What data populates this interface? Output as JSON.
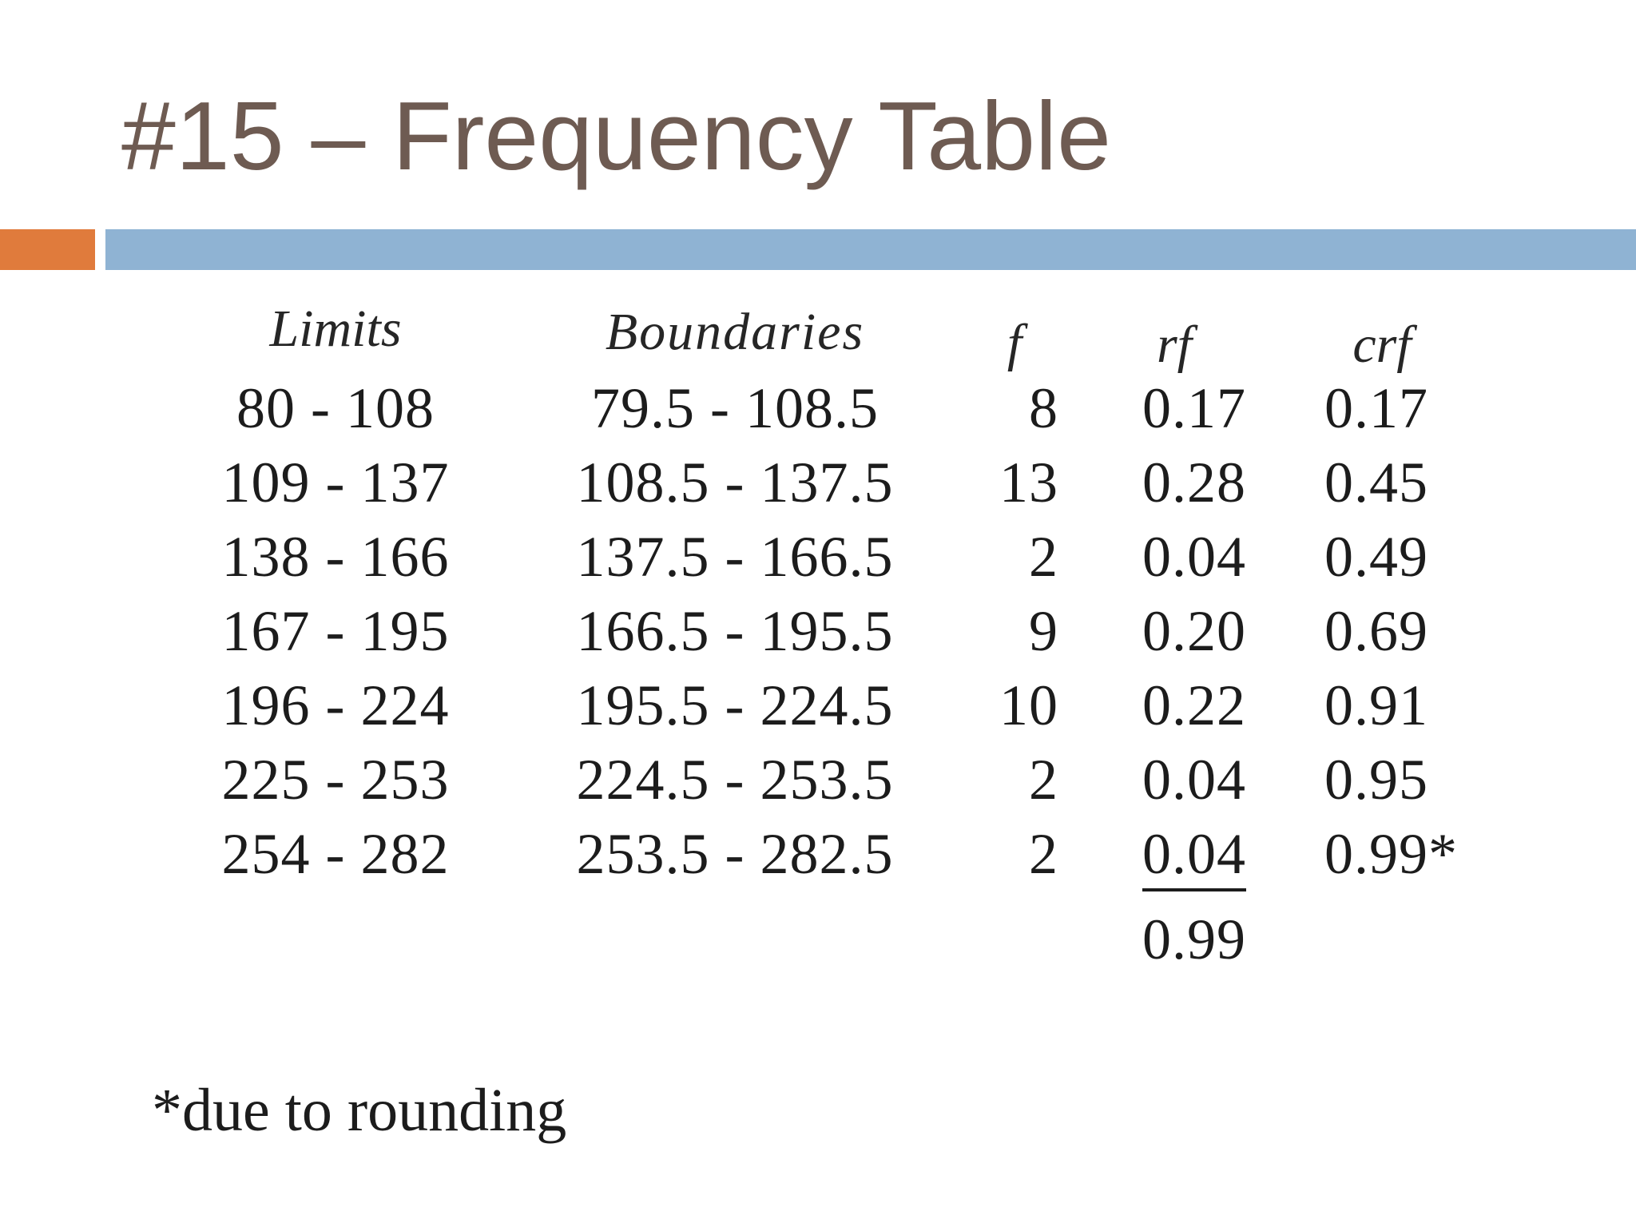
{
  "slide": {
    "title": "#15 – Frequency Table",
    "footnote": "*due to rounding",
    "colors": {
      "title": "#6e5b52",
      "accent_orange": "#e07b3c",
      "accent_blue": "#8fb3d3"
    }
  },
  "table": {
    "headers": {
      "limits": "Limits",
      "boundaries": "Boundaries",
      "f": "f",
      "rf": "rf",
      "crf": "crf"
    },
    "rows": [
      {
        "limits": "80 - 108",
        "boundaries": "79.5 - 108.5",
        "f": "8",
        "rf": "0.17",
        "crf": "0.17"
      },
      {
        "limits": "109 - 137",
        "boundaries": "108.5 - 137.5",
        "f": "13",
        "rf": "0.28",
        "crf": "0.45"
      },
      {
        "limits": "138 - 166",
        "boundaries": "137.5 - 166.5",
        "f": "2",
        "rf": "0.04",
        "crf": "0.49"
      },
      {
        "limits": "167 - 195",
        "boundaries": "166.5 - 195.5",
        "f": "9",
        "rf": "0.20",
        "crf": "0.69"
      },
      {
        "limits": "196 - 224",
        "boundaries": "195.5 - 224.5",
        "f": "10",
        "rf": "0.22",
        "crf": "0.91"
      },
      {
        "limits": "225 - 253",
        "boundaries": "224.5 - 253.5",
        "f": "2",
        "rf": "0.04",
        "crf": "0.95"
      },
      {
        "limits": "254 - 282",
        "boundaries": "253.5 - 282.5",
        "f": "2",
        "rf": "0.04",
        "crf": "0.99*"
      }
    ],
    "rf_total": "0.99"
  }
}
